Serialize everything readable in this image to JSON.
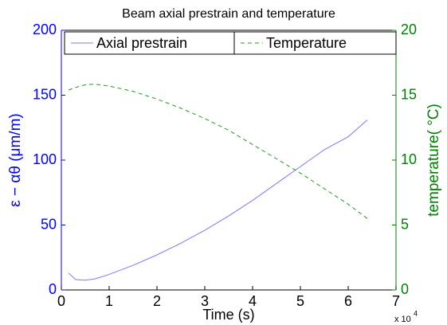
{
  "chart_data": {
    "type": "line",
    "title": "Beam axial prestrain and temperature",
    "x_label": "Time (s)",
    "x_scale_label": "x 10",
    "x_scale_exponent": "4",
    "y_label": "ε − αθ (μm/m)",
    "y2_label": "temperature( °C)",
    "x": [
      0.15,
      0.3,
      0.5,
      0.7,
      1.0,
      1.5,
      2.0,
      2.5,
      3.0,
      3.5,
      4.0,
      4.5,
      5.0,
      5.5,
      6.0,
      6.4
    ],
    "series": [
      {
        "name": "Axial prestrain",
        "color": "#7a7aff",
        "dash": "solid",
        "axis": "y",
        "legend": "upper left",
        "values": [
          13,
          8,
          7.5,
          8.5,
          12,
          19,
          27,
          36,
          46,
          57,
          69,
          82,
          95,
          108,
          118,
          131
        ]
      },
      {
        "name": "Temperature",
        "color": "#1f9a1f",
        "dash": "dashed",
        "axis": "y2",
        "legend": "upper right",
        "values": [
          15.4,
          15.6,
          15.8,
          15.85,
          15.7,
          15.3,
          14.7,
          14.0,
          13.2,
          12.3,
          11.2,
          10.1,
          9.0,
          7.8,
          6.6,
          5.5
        ]
      }
    ],
    "xlim": [
      0,
      7
    ],
    "xticks": [
      0,
      1,
      2,
      3,
      4,
      5,
      6,
      7
    ],
    "ylim": [
      0,
      200
    ],
    "yticks": [
      0,
      50,
      100,
      150,
      200
    ],
    "y_color": "#0000ff",
    "y2lim": [
      0,
      20
    ],
    "y2ticks": [
      0,
      5,
      10,
      15,
      20
    ],
    "y2_color": "#008000",
    "grid": false
  }
}
